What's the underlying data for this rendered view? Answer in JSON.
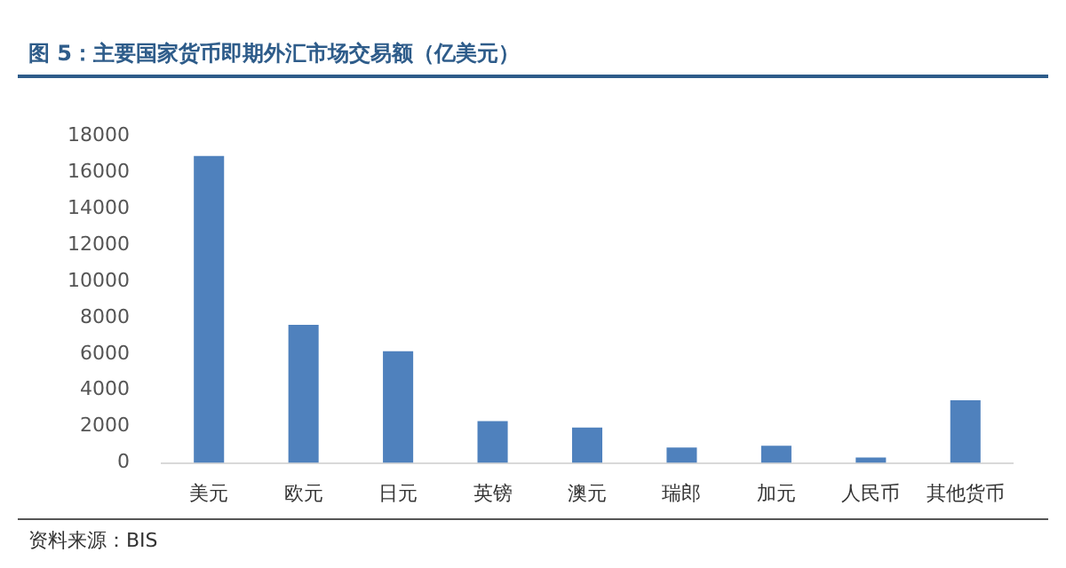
{
  "chart_data": {
    "type": "bar",
    "title": "图 5：主要国家货币即期外汇市场交易额（亿美元）",
    "categories": [
      "美元",
      "欧元",
      "日元",
      "英镑",
      "澳元",
      "瑞郎",
      "加元",
      "人民币",
      "其他货币"
    ],
    "values": [
      16900,
      7600,
      6150,
      2300,
      1950,
      850,
      950,
      300,
      3450
    ],
    "color": "#4f81bd",
    "ylim": [
      0,
      18000
    ],
    "yticks": [
      0,
      2000,
      4000,
      6000,
      8000,
      10000,
      12000,
      14000,
      16000,
      18000
    ],
    "grid": false,
    "legend": false,
    "annotations": [
      "资料来源：BIS"
    ]
  }
}
